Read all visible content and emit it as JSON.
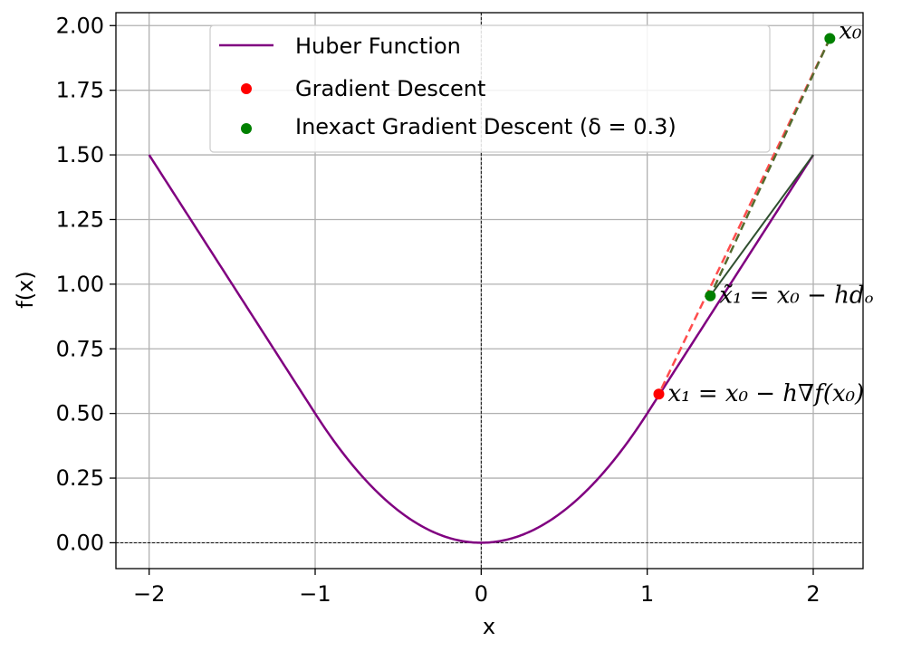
{
  "chart_data": {
    "type": "line",
    "title": "",
    "xlabel": "x",
    "ylabel": "f(x)",
    "xlim": [
      -2.2,
      2.3
    ],
    "ylim": [
      -0.1,
      2.05
    ],
    "grid": true,
    "legend_placement": "top-center",
    "x_ticks": [
      -2,
      -1,
      0,
      1,
      2
    ],
    "x_tick_labels": [
      "−2",
      "−1",
      "0",
      "1",
      "2"
    ],
    "y_ticks": [
      0,
      0.25,
      0.5,
      0.75,
      1.0,
      1.25,
      1.5,
      1.75,
      2.0
    ],
    "y_tick_labels": [
      "0.00",
      "0.25",
      "0.50",
      "0.75",
      "1.00",
      "1.25",
      "1.50",
      "1.75",
      "2.00"
    ],
    "colors": {
      "huber": "#800080",
      "gd": "#ff0000",
      "igd": "#008000",
      "gd_path": "#ff4d4d",
      "igd_path": "#556b2f",
      "grid": "#b0b0b0",
      "zero_lines": "#000000"
    },
    "huber": {
      "delta": 1.0,
      "x_range": [
        -2,
        2
      ],
      "name": "Huber Function"
    },
    "series": [
      {
        "name": "Gradient Descent",
        "kind": "scatter",
        "points": [
          [
            1.07,
            0.575
          ]
        ]
      },
      {
        "name": "Inexact Gradient Descent (δ = 0.3)",
        "kind": "scatter",
        "points": [
          [
            2.1,
            1.95
          ],
          [
            1.38,
            0.955
          ]
        ]
      }
    ],
    "paths": [
      {
        "kind": "gd-dashed",
        "points": [
          [
            2.1,
            1.95
          ],
          [
            1.07,
            0.575
          ]
        ]
      },
      {
        "kind": "igd-dashed",
        "points": [
          [
            2.1,
            1.95
          ],
          [
            1.38,
            0.955
          ]
        ]
      }
    ],
    "legend": [
      {
        "label": "Huber Function",
        "marker": "line"
      },
      {
        "label": "Gradient Descent",
        "marker": "dot"
      },
      {
        "label": "Inexact Gradient Descent (δ = 0.3)",
        "marker": "dot"
      }
    ],
    "annotations": [
      {
        "text": "x₀",
        "x": 2.1,
        "y": 1.95
      },
      {
        "text": "x̃₁ = x₀ − hdₒ",
        "x": 1.38,
        "y": 0.955
      },
      {
        "text": "x₁ = x₀ − h∇f(x₀)",
        "x": 1.07,
        "y": 0.575
      }
    ]
  }
}
